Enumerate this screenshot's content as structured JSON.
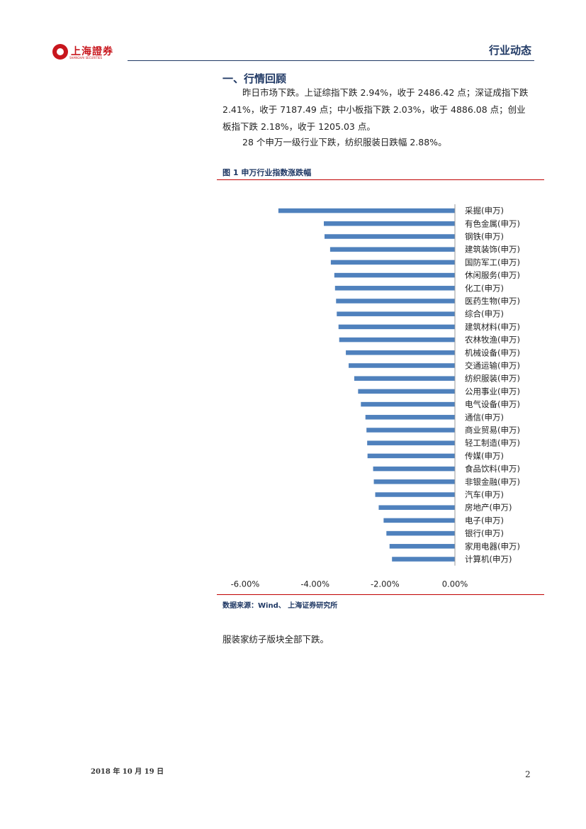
{
  "header": {
    "logo_text": "上海證券",
    "logo_sub": "SHANGHAI SECURITIES",
    "title": "行业动态"
  },
  "section": {
    "title": "一、行情回顾",
    "paragraph1": "昨日市场下跌。上证综指下跌 2.94%，收于 2486.42 点；深证成指下跌 2.41%，收于 7187.49 点；中小板指下跌 2.03%，收于 4886.08 点；创业板指下跌 2.18%，收于 1205.03 点。",
    "paragraph2": "28 个申万一级行业下跌，纺织服装日跌幅 2.88%。"
  },
  "figure": {
    "title": "图 1 申万行业指数涨跌幅",
    "source": "数据来源：Wind、 上海证券研究所"
  },
  "chart_data": {
    "type": "bar",
    "orientation": "horizontal",
    "title": "",
    "xlabel": "",
    "ylabel": "",
    "xlim": [
      -6,
      0
    ],
    "xticks": [
      -6,
      -4,
      -2,
      0
    ],
    "xtick_labels": [
      "-6.00%",
      "-4.00%",
      "-2.00%",
      "0.00%"
    ],
    "bar_color": "#4f81bd",
    "categories": [
      "采掘(申万)",
      "有色金属(申万)",
      "钢铁(申万)",
      "建筑装饰(申万)",
      "国防军工(申万)",
      "休闲服务(申万)",
      "化工(申万)",
      "医药生物(申万)",
      "综合(申万)",
      "建筑材料(申万)",
      "农林牧渔(申万)",
      "机械设备(申万)",
      "交通运输(申万)",
      "纺织服装(申万)",
      "公用事业(申万)",
      "电气设备(申万)",
      "通信(申万)",
      "商业贸易(申万)",
      "轻工制造(申万)",
      "传媒(申万)",
      "食品饮料(申万)",
      "非银金融(申万)",
      "汽车(申万)",
      "房地产(申万)",
      "电子(申万)",
      "银行(申万)",
      "家用电器(申万)",
      "计算机(申万)"
    ],
    "values": [
      -5.05,
      -3.75,
      -3.73,
      -3.57,
      -3.55,
      -3.45,
      -3.43,
      -3.4,
      -3.38,
      -3.33,
      -3.31,
      -3.12,
      -3.04,
      -2.88,
      -2.77,
      -2.69,
      -2.56,
      -2.53,
      -2.51,
      -2.5,
      -2.34,
      -2.32,
      -2.28,
      -2.18,
      -2.04,
      -1.96,
      -1.87,
      -1.8
    ]
  },
  "note": "服装家纺子版块全部下跌。",
  "footer": {
    "date": "2018 年 10 月 19 日",
    "page": "2"
  }
}
